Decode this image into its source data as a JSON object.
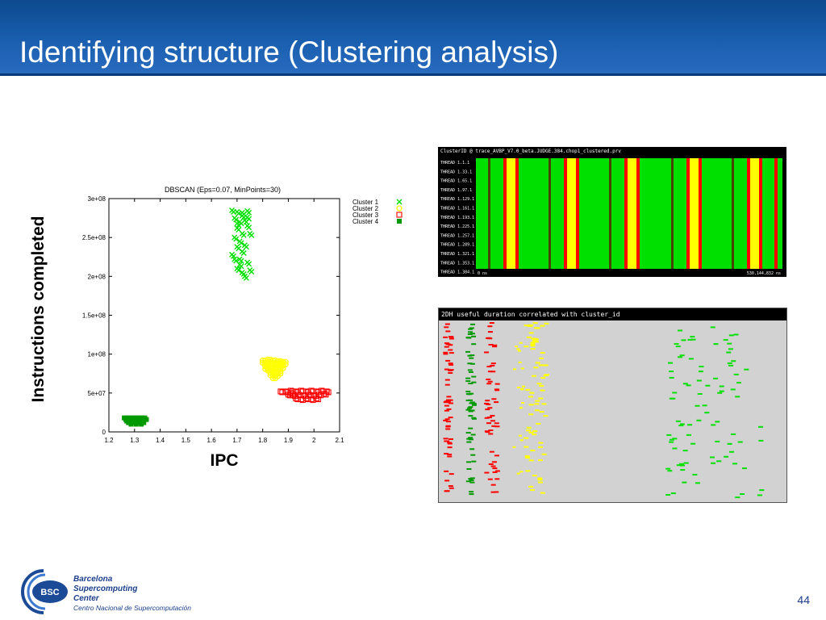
{
  "slide": {
    "title": "Identifying structure (Clustering analysis)",
    "page_number": "44",
    "y_axis_label": "Instructions completed",
    "x_axis_label": "IPC"
  },
  "logo": {
    "abbr": "BSC",
    "line1": "Barcelona",
    "line2": "Supercomputing",
    "line3": "Center",
    "line4": "Centro Nacional de Supercomputación"
  },
  "timeline_panel": {
    "header": "ClusterID @ trace_AVBP_V7.0_beta.JUDGE.384.chop1_clustered.prv",
    "rows": [
      "THREAD 1.1.1",
      "THREAD 1.33.1",
      "THREAD 1.65.1",
      "THREAD 1.97.1",
      "THREAD 1.129.1",
      "THREAD 1.161.1",
      "THREAD 1.193.1",
      "THREAD 1.225.1",
      "THREAD 1.257.1",
      "THREAD 1.289.1",
      "THREAD 1.321.1",
      "THREAD 1.353.1",
      "THREAD 1.384.1"
    ],
    "start_label": "0 ns",
    "end_label": "530,144,832 ns"
  },
  "histogram_panel": {
    "header": "2DH useful duration correlated with cluster_id"
  },
  "colors": {
    "cluster1": "#00e000",
    "cluster2": "#ffff00",
    "cluster3": "#ff0000",
    "cluster4": "#009900",
    "title_bar": "#1a5fb0"
  },
  "chart_data": {
    "type": "scatter",
    "title": "DBSCAN (Eps=0.07, MinPoints=30)",
    "xlabel": "IPC",
    "ylabel": "Instructions completed",
    "xlim": [
      1.2,
      2.1
    ],
    "ylim": [
      0,
      300000000
    ],
    "x_ticks": [
      "1.2",
      "1.3",
      "1.4",
      "1.5",
      "1.6",
      "1.7",
      "1.8",
      "1.9",
      "2",
      "2.1"
    ],
    "y_ticks": [
      "0",
      "5e+07",
      "1e+08",
      "1.5e+08",
      "2e+08",
      "2.5e+08",
      "3e+08"
    ],
    "legend_position": "top-right, outside plot",
    "series": [
      {
        "name": "Cluster 1",
        "marker": "x",
        "color": "#00e000",
        "x": [
          1.68,
          1.7,
          1.72,
          1.74,
          1.69,
          1.71,
          1.73,
          1.7,
          1.72,
          1.74,
          1.69,
          1.71,
          1.75,
          1.7,
          1.72,
          1.68,
          1.73,
          1.71,
          1.74,
          1.7,
          1.72,
          1.71,
          1.69,
          1.73,
          1.75,
          1.7,
          1.72,
          1.74
        ],
        "y": [
          285000000,
          283000000,
          282000000,
          284000000,
          275000000,
          270000000,
          272000000,
          262000000,
          255000000,
          265000000,
          250000000,
          245000000,
          255000000,
          238000000,
          232000000,
          228000000,
          240000000,
          222000000,
          218000000,
          210000000,
          205000000,
          215000000,
          222000000,
          200000000,
          208000000,
          268000000,
          278000000,
          276000000
        ]
      },
      {
        "name": "Cluster 2",
        "marker": "o",
        "color": "#ffff00",
        "x": [
          1.8,
          1.82,
          1.84,
          1.86,
          1.88,
          1.81,
          1.83,
          1.85,
          1.87,
          1.82,
          1.84,
          1.86,
          1.83,
          1.85,
          1.81,
          1.87,
          1.84,
          1.86
        ],
        "y": [
          92000000,
          93000000,
          92000000,
          91000000,
          90000000,
          88000000,
          87000000,
          86000000,
          85000000,
          82000000,
          80000000,
          81000000,
          76000000,
          75000000,
          84000000,
          89000000,
          72000000,
          78000000
        ]
      },
      {
        "name": "Cluster 3",
        "marker": "square",
        "color": "#ff0000",
        "x": [
          1.87,
          1.89,
          1.91,
          1.93,
          1.95,
          1.97,
          1.99,
          2.01,
          2.03,
          2.05,
          1.9,
          1.92,
          1.94,
          1.96,
          1.98,
          2.0,
          2.02,
          1.93,
          1.95,
          1.97,
          1.99,
          2.01,
          1.91,
          2.04
        ],
        "y": [
          52000000,
          52000000,
          53000000,
          52000000,
          53000000,
          52000000,
          53000000,
          52000000,
          53000000,
          52000000,
          48000000,
          47000000,
          48000000,
          47000000,
          48000000,
          47000000,
          48000000,
          43000000,
          42000000,
          43000000,
          42000000,
          43000000,
          50000000,
          49000000
        ]
      },
      {
        "name": "Cluster 4",
        "marker": "filled-square",
        "color": "#009900",
        "x": [
          1.26,
          1.27,
          1.28,
          1.29,
          1.3,
          1.31,
          1.32,
          1.33,
          1.34,
          1.27,
          1.29,
          1.31,
          1.33,
          1.28,
          1.3,
          1.32
        ],
        "y": [
          18000000,
          18000000,
          18000000,
          18000000,
          18000000,
          18000000,
          18000000,
          18000000,
          18000000,
          14000000,
          14000000,
          14000000,
          14000000,
          12000000,
          12000000,
          12000000
        ]
      }
    ]
  }
}
